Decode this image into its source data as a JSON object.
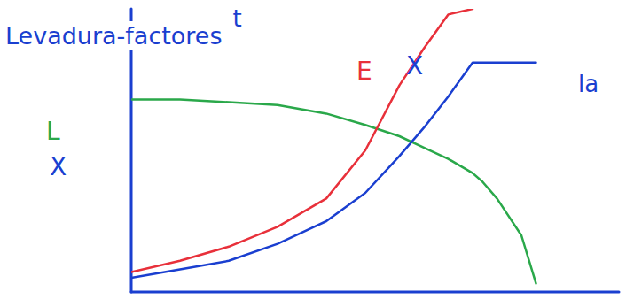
{
  "chart_data": {
    "type": "line",
    "title": "Levadura-factores",
    "xlabel": "t",
    "ylabel": "X",
    "annotations": [
      "la"
    ],
    "tick_labels": false,
    "grid": false,
    "x": [
      0,
      1,
      2,
      3,
      4,
      4.8,
      5.5,
      6,
      6.5,
      7,
      7.2,
      7.5,
      8,
      8.3
    ],
    "xlim": [
      0,
      10
    ],
    "ylim": [
      0,
      10
    ],
    "xticks": [],
    "yticks": [],
    "series": [
      {
        "name": "L",
        "color": "#2aa84a",
        "values": [
          6.8,
          6.8,
          6.7,
          6.6,
          6.3,
          5.9,
          5.5,
          5.1,
          4.7,
          4.2,
          3.9,
          3.3,
          2.0,
          0.3
        ]
      },
      {
        "name": "E",
        "color": "#e8303a",
        "values": [
          0.7,
          1.1,
          1.6,
          2.3,
          3.3,
          5.0,
          7.3,
          8.6,
          9.8,
          10.0,
          null,
          null,
          null,
          null
        ]
      },
      {
        "name": "X",
        "color": "#1a3fd0",
        "values": [
          0.5,
          0.8,
          1.1,
          1.7,
          2.5,
          3.5,
          4.8,
          5.8,
          6.9,
          8.1,
          8.1,
          8.1,
          8.1,
          8.1
        ]
      }
    ]
  }
}
